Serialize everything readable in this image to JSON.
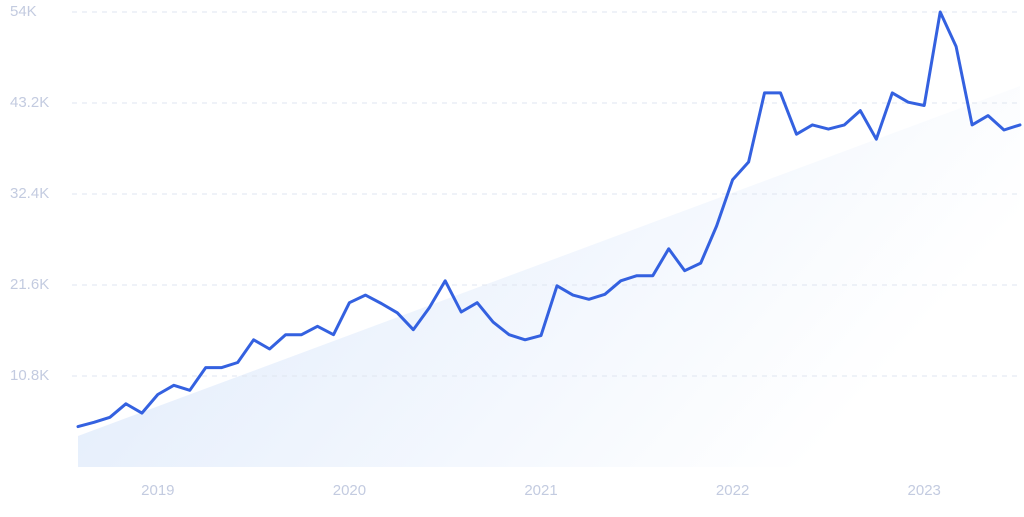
{
  "chart_data": {
    "type": "line",
    "color": "#3461e0",
    "grid": true,
    "ylim": [
      0,
      54000
    ],
    "yticks": [
      {
        "value": 10800,
        "label": "10.8K"
      },
      {
        "value": 21600,
        "label": "21.6K"
      },
      {
        "value": 32400,
        "label": "32.4K"
      },
      {
        "value": 43200,
        "label": "43.2K"
      },
      {
        "value": 54000,
        "label": "54K"
      }
    ],
    "categories": [
      null,
      null,
      null,
      null,
      null,
      "2019",
      null,
      null,
      null,
      null,
      null,
      null,
      null,
      null,
      null,
      null,
      null,
      "2020",
      null,
      null,
      null,
      null,
      null,
      null,
      null,
      null,
      null,
      null,
      null,
      "2021",
      null,
      null,
      null,
      null,
      null,
      null,
      null,
      null,
      null,
      null,
      null,
      "2022",
      null,
      null,
      null,
      null,
      null,
      null,
      null,
      null,
      null,
      null,
      null,
      "2023",
      null,
      null,
      null,
      null,
      null,
      null
    ],
    "values": [
      4800,
      5300,
      5900,
      7500,
      6400,
      8600,
      9700,
      9100,
      11800,
      11800,
      12400,
      15100,
      14000,
      15700,
      15700,
      16700,
      15700,
      19500,
      20400,
      19400,
      18300,
      16300,
      18900,
      22100,
      18400,
      19500,
      17200,
      15700,
      15100,
      15600,
      21500,
      20400,
      19900,
      20500,
      22100,
      22700,
      22700,
      25900,
      23300,
      24200,
      28600,
      34100,
      36200,
      44400,
      44400,
      39500,
      40600,
      40100,
      40600,
      42300,
      38900,
      44400,
      43300,
      42900,
      54000,
      49900,
      40600,
      41700,
      40000,
      40600
    ]
  }
}
